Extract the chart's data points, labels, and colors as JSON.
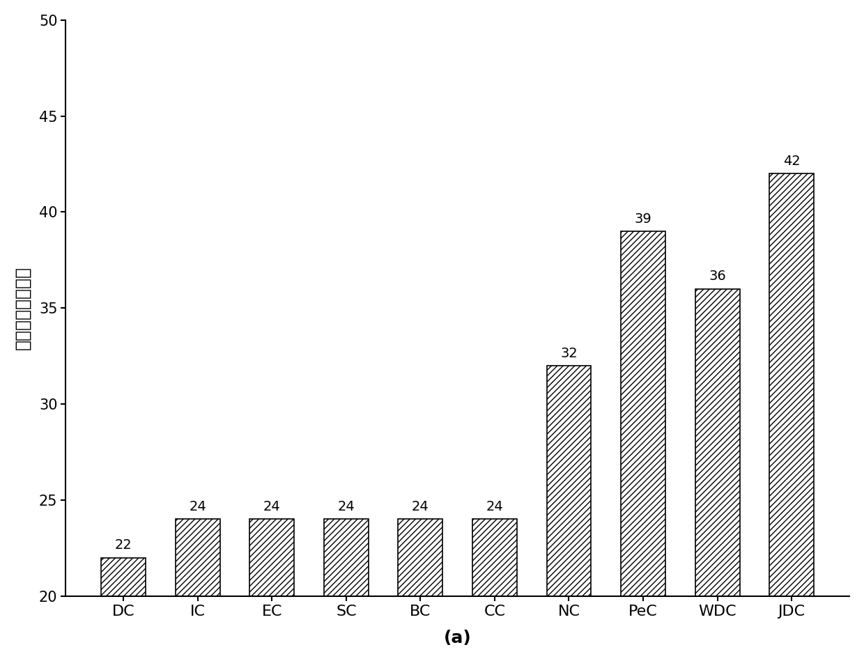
{
  "categories": [
    "DC",
    "IC",
    "EC",
    "SC",
    "BC",
    "CC",
    "NC",
    "PeC",
    "WDC",
    "JDC"
  ],
  "values": [
    22,
    24,
    24,
    24,
    24,
    24,
    32,
    39,
    36,
    42
  ],
  "ylim": [
    20,
    50
  ],
  "yticks": [
    20,
    25,
    30,
    35,
    40,
    45,
    50
  ],
  "ylabel": "关键蛋白质的数量",
  "xlabel": "(a)",
  "bar_color": "white",
  "bar_edgecolor": "black",
  "hatch_pattern": "////",
  "bar_width": 0.6,
  "label_fontsize": 16,
  "tick_fontsize": 15,
  "ylabel_fontsize": 18,
  "xlabel_fontsize": 18,
  "annotation_fontsize": 14,
  "background_color": "white"
}
